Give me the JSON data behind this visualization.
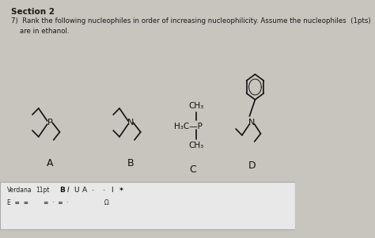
{
  "bg_color": "#c8c4be",
  "section_title": "Section 2",
  "question_text": "7)  Rank the following nucleophiles in order of increasing nucleophilicity. Assume the nucleophiles  (1pts)\n    are in ethanol.",
  "labels": [
    "A",
    "B",
    "C",
    "D"
  ],
  "toolbar_text": "Verdana        11pt              B  I  U  A ·       ·  I  ✶\nΕ  ≡  ≡       ≡  ·  ≡  ·                    Ω          ◆",
  "text_color": "#1a1a1a",
  "toolbar_bg": "#e8e8e8",
  "toolbar_border": "#aaaaaa",
  "molecule_color": "#111111",
  "label_fontsize": 9,
  "section_fontsize": 7.5,
  "question_fontsize": 6.2
}
